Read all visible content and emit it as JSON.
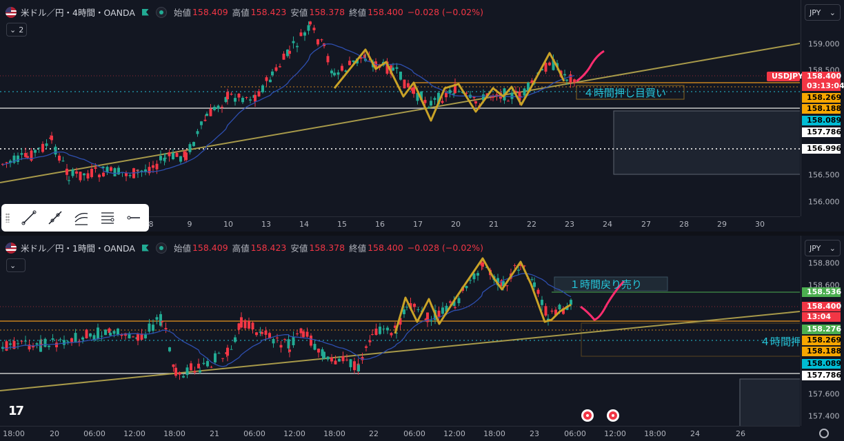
{
  "colors": {
    "up": "#22ab94",
    "down": "#f23645",
    "bg": "#131722",
    "gold": "#c9a227",
    "trend": "#a89a4a",
    "ma": "#2e4fb0",
    "pink": "#ff2d6f",
    "cyan": "#26c6da"
  },
  "top": {
    "legend": {
      "symbol": "米ドル／円・4時間・OANDA",
      "open_label": "始値",
      "open": "158.409",
      "high_label": "高値",
      "high": "158.423",
      "low_label": "安値",
      "low": "158.378",
      "close_label": "終値",
      "close": "158.400",
      "change": "−0.028 (−0.02%)"
    },
    "collapse_count": "2",
    "currency": "JPY",
    "annotation": "４時間押し目買い",
    "yticks": [
      "159.000",
      "158.500",
      "156.500",
      "156.000"
    ],
    "badges": [
      {
        "text": "USDJPY",
        "bg": "#f23645",
        "fg": "#ffffff"
      },
      {
        "text": "158.400",
        "bg": "#f23645",
        "fg": "#ffffff"
      },
      {
        "text": "03:13:04",
        "bg": "#f23645",
        "fg": "#ffffff"
      },
      {
        "text": "158.269",
        "bg": "#f7a600",
        "fg": "#000000"
      },
      {
        "text": "158.188",
        "bg": "#f7a600",
        "fg": "#000000"
      },
      {
        "text": "158.089",
        "bg": "#00bcd4",
        "fg": "#000000"
      },
      {
        "text": "157.786",
        "bg": "#ffffff",
        "fg": "#000000"
      },
      {
        "text": "156.996",
        "bg": "#ffffff",
        "fg": "#000000"
      }
    ],
    "xticks": [
      "8",
      "9",
      "10",
      "13",
      "14",
      "15",
      "16",
      "17",
      "20",
      "21",
      "22",
      "23",
      "24",
      "27",
      "28",
      "29",
      "30"
    ]
  },
  "bottom": {
    "legend": {
      "symbol": "米ドル／円・1時間・OANDA",
      "open_label": "始値",
      "open": "158.409",
      "high_label": "高値",
      "high": "158.423",
      "low_label": "安値",
      "low": "158.378",
      "close_label": "終値",
      "close": "158.400",
      "change": "−0.028 (−0.02%)"
    },
    "currency": "JPY",
    "annotation": "１時間戻り売り",
    "annotation2": "４時間押",
    "yticks": [
      "158.800",
      "158.600",
      "157.600",
      "157.400"
    ],
    "badges": [
      {
        "text": "158.536",
        "bg": "#4caf50",
        "fg": "#ffffff"
      },
      {
        "text": "158.400",
        "bg": "#f23645",
        "fg": "#ffffff"
      },
      {
        "text": "13:04",
        "bg": "#f23645",
        "fg": "#ffffff"
      },
      {
        "text": "158.276",
        "bg": "#4caf50",
        "fg": "#ffffff"
      },
      {
        "text": "158.269",
        "bg": "#f7a600",
        "fg": "#000000"
      },
      {
        "text": "158.188",
        "bg": "#f7a600",
        "fg": "#000000"
      },
      {
        "text": "158.089",
        "bg": "#00bcd4",
        "fg": "#000000"
      },
      {
        "text": "157.786",
        "bg": "#ffffff",
        "fg": "#000000"
      }
    ],
    "xticks": [
      "18:00",
      "20",
      "06:00",
      "12:00",
      "18:00",
      "21",
      "06:00",
      "12:00",
      "18:00",
      "22",
      "06:00",
      "12:00",
      "18:00",
      "23",
      "06:00",
      "12:00",
      "18:00",
      "24",
      "26"
    ]
  },
  "chart_data": [
    {
      "type": "candlestick",
      "timeframe": "4時間",
      "yticks": [
        159.0,
        158.5,
        156.5,
        156.0
      ],
      "levels": {
        "current": 158.4,
        "lines": [
          158.269,
          158.188,
          158.089,
          157.786,
          156.996
        ]
      },
      "xticks": [
        "8",
        "9",
        "10",
        "13",
        "14",
        "15",
        "16",
        "17",
        "20",
        "21",
        "22",
        "23",
        "24",
        "27",
        "28",
        "29",
        "30"
      ]
    },
    {
      "type": "candlestick",
      "timeframe": "1時間",
      "yticks": [
        158.8,
        158.6,
        157.6,
        157.4
      ],
      "levels": {
        "current": 158.4,
        "lines": [
          158.536,
          158.276,
          158.269,
          158.188,
          158.089,
          157.786
        ]
      },
      "xticks": [
        "18:00",
        "20",
        "06:00",
        "12:00",
        "18:00",
        "21",
        "06:00",
        "12:00",
        "18:00",
        "22",
        "06:00",
        "12:00",
        "18:00",
        "23",
        "06:00",
        "12:00",
        "18:00",
        "24",
        "26"
      ]
    }
  ]
}
